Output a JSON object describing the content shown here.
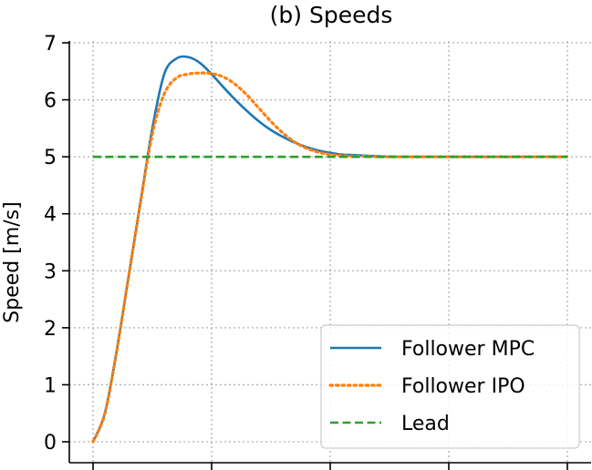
{
  "chart_data": {
    "type": "line",
    "title": "(b) Speeds",
    "xlabel": "",
    "ylabel": "Speed [m/s]",
    "xlim": [
      0,
      20
    ],
    "ylim": [
      0,
      7
    ],
    "yticks": [
      0,
      1,
      2,
      3,
      4,
      5,
      6,
      7
    ],
    "xticks": [
      0,
      5,
      10,
      15,
      20
    ],
    "xtick_labels_visible": false,
    "grid": true,
    "legend_position": "lower-right",
    "series": [
      {
        "name": "Follower MPC",
        "color": "#1f77b4",
        "style": "solid",
        "x": [
          0,
          0.5,
          1,
          1.5,
          2,
          2.5,
          3,
          3.5,
          4,
          4.5,
          5,
          5.5,
          6,
          6.5,
          7,
          7.5,
          8,
          8.5,
          9,
          9.5,
          10,
          10.5,
          11,
          11.5,
          12,
          13,
          14,
          15,
          16,
          17,
          18,
          19,
          20
        ],
        "y": [
          0,
          0.5,
          1.6,
          2.9,
          4.2,
          5.5,
          6.45,
          6.72,
          6.75,
          6.65,
          6.45,
          6.22,
          6.0,
          5.8,
          5.62,
          5.47,
          5.35,
          5.25,
          5.17,
          5.11,
          5.07,
          5.04,
          5.03,
          5.02,
          5.01,
          5.0,
          5.0,
          5.0,
          5.0,
          5.0,
          5.0,
          5.0,
          5.0
        ]
      },
      {
        "name": "Follower IPO",
        "color": "#ff7f0e",
        "style": "dotted",
        "x": [
          0,
          0.5,
          1,
          1.5,
          2,
          2.5,
          3,
          3.5,
          4,
          4.5,
          5,
          5.5,
          6,
          6.5,
          7,
          7.5,
          8,
          8.5,
          9,
          9.5,
          10,
          10.5,
          11,
          11.5,
          12,
          13,
          14,
          15,
          16,
          17,
          18,
          19,
          20
        ],
        "y": [
          0,
          0.5,
          1.6,
          2.9,
          4.2,
          5.4,
          6.1,
          6.38,
          6.45,
          6.47,
          6.46,
          6.4,
          6.27,
          6.08,
          5.85,
          5.62,
          5.42,
          5.26,
          5.15,
          5.08,
          5.04,
          5.02,
          5.01,
          5.01,
          5.0,
          5.0,
          5.0,
          5.0,
          5.0,
          5.0,
          5.0,
          5.0,
          5.0
        ]
      },
      {
        "name": "Lead",
        "color": "#2ca02c",
        "style": "dashed",
        "x": [
          0,
          20
        ],
        "y": [
          5,
          5
        ]
      }
    ]
  }
}
